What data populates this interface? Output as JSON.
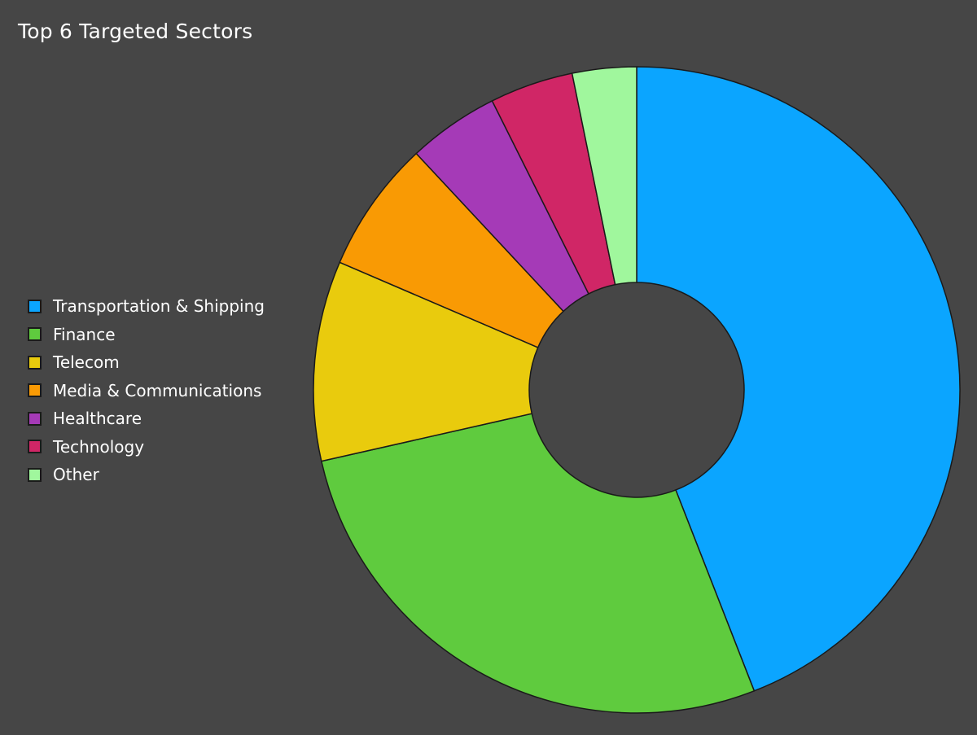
{
  "chart_data": {
    "type": "pie",
    "title": "Top 6 Targeted Sectors",
    "donut": true,
    "legend_position": "left",
    "slices": [
      {
        "label": "Transportation & Shipping",
        "value": 45.4,
        "color": "#0ba5ff"
      },
      {
        "label": "Finance",
        "value": 28.2,
        "color": "#5fcb3e"
      },
      {
        "label": "Telecom",
        "value": 10.3,
        "color": "#e9cb0d"
      },
      {
        "label": "Media & Communications",
        "value": 6.8,
        "color": "#f99a04"
      },
      {
        "label": "Healthcare",
        "value": 4.7,
        "color": "#a53ab7"
      },
      {
        "label": "Technology",
        "value": 4.3,
        "color": "#d02666"
      },
      {
        "label": "Other",
        "value": 3.3,
        "color": "#a0f79d"
      }
    ]
  }
}
